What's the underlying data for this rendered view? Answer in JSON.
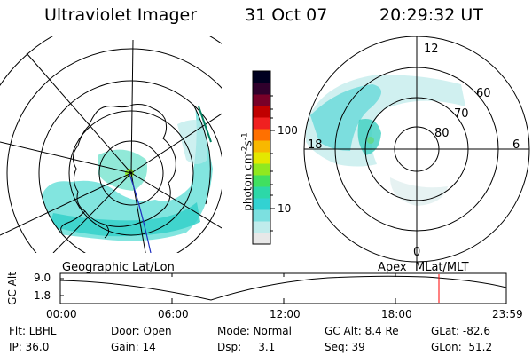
{
  "header": {
    "instrument": "Ultraviolet Imager",
    "date": "31 Oct 07",
    "time": "20:29:32 UT"
  },
  "colorbar": {
    "label": "photon cm",
    "label_sup": "-2",
    "label_s": "s",
    "label_sup2": "-1",
    "ticks": [
      {
        "label": "100",
        "value": 100
      },
      {
        "label": "10",
        "value": 10
      }
    ],
    "colors_bottom_to_top": [
      "#e8e8e8",
      "#c0ecec",
      "#7ce0e0",
      "#32d2d2",
      "#2cd8a8",
      "#40e060",
      "#90e820",
      "#e4e800",
      "#f8b800",
      "#ff7000",
      "#f02020",
      "#c00000",
      "#780028",
      "#30002c",
      "#000020"
    ]
  },
  "left_map": {
    "caption": "Geographic Lat/Lon"
  },
  "right_polar": {
    "caption_left": "Apex",
    "caption_right": "MLat/MLT",
    "mlt_labels": {
      "top": "12",
      "left": "18",
      "right": "6",
      "bottom": "0"
    },
    "lat_labels": [
      "60",
      "70",
      "80"
    ]
  },
  "altitude_plot": {
    "ylabel": "GC Alt",
    "yticks": [
      "9.0",
      "1.8"
    ],
    "xticks": [
      "00:00",
      "06:00",
      "12:00",
      "18:00",
      "23:59"
    ],
    "cursor_color": "#ff0000"
  },
  "footer": {
    "rows": [
      [
        "Flt: LBHL",
        "Door: Open",
        "Mode: Normal",
        "GC Alt: 8.4 Re",
        "GLat: -82.6"
      ],
      [
        "IP: 36.0",
        "Gain: 14",
        "Dsp:     3.1",
        "Seq: 39",
        "GLon:  51.2"
      ]
    ]
  }
}
